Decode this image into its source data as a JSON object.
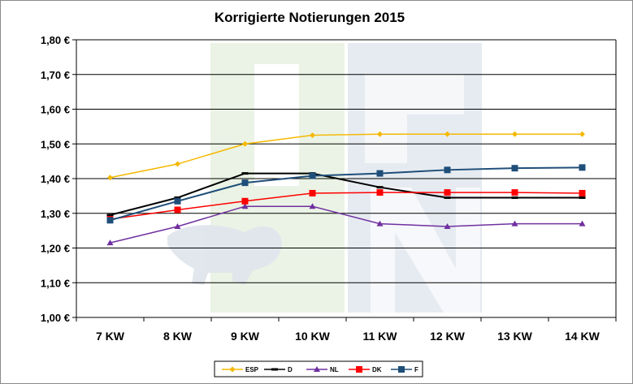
{
  "chart_data": {
    "type": "line",
    "title": "Korrigierte Notierungen 2015",
    "xlabel": "",
    "ylabel": "",
    "categories": [
      "7 KW",
      "8 KW",
      "9 KW",
      "10 KW",
      "11 KW",
      "12 KW",
      "13 KW",
      "14 KW"
    ],
    "y_ticks": [
      "1,00 €",
      "1,10 €",
      "1,20 €",
      "1,30 €",
      "1,40 €",
      "1,50 €",
      "1,60 €",
      "1,70 €",
      "1,80 €"
    ],
    "ylim": [
      1.0,
      1.8
    ],
    "grid": true,
    "legend_position": "bottom",
    "series": [
      {
        "name": "ESP",
        "color": "#f5b800",
        "marker": "diamond",
        "values": [
          1.403,
          1.442,
          1.5,
          1.525,
          1.528,
          1.528,
          1.528,
          1.528
        ]
      },
      {
        "name": "D",
        "color": "#000000",
        "marker": "dash",
        "values": [
          1.295,
          1.345,
          1.415,
          1.415,
          1.375,
          1.345,
          1.345,
          1.345
        ]
      },
      {
        "name": "NL",
        "color": "#7030a0",
        "marker": "triangle",
        "values": [
          1.215,
          1.262,
          1.32,
          1.32,
          1.27,
          1.262,
          1.27,
          1.27
        ]
      },
      {
        "name": "DK",
        "color": "#ff0000",
        "marker": "square",
        "values": [
          1.283,
          1.31,
          1.335,
          1.358,
          1.36,
          1.36,
          1.36,
          1.358
        ]
      },
      {
        "name": "F",
        "color": "#1f4e79",
        "marker": "square",
        "values": [
          1.28,
          1.335,
          1.388,
          1.408,
          1.415,
          1.425,
          1.43,
          1.432
        ]
      }
    ]
  }
}
